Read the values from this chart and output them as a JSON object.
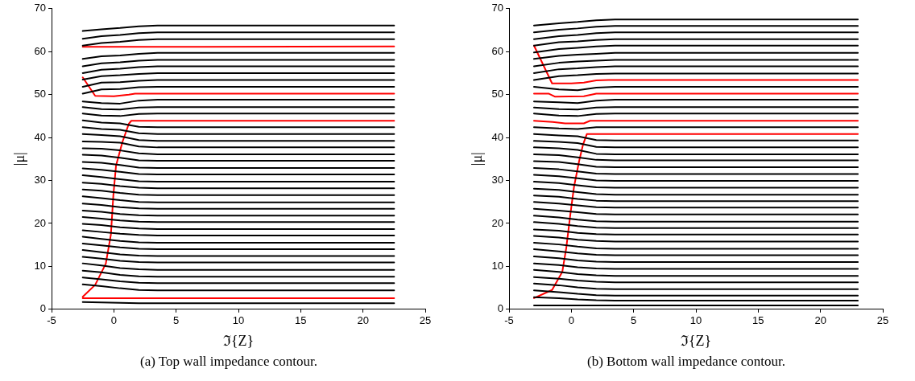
{
  "chart_data": [
    {
      "type": "line",
      "xlabel": "ℑ{Z}",
      "ylabel": "|μ|",
      "xlim": [
        -5,
        25
      ],
      "ylim": [
        0,
        70
      ],
      "xticks": [
        -5,
        0,
        5,
        10,
        15,
        20,
        25
      ],
      "yticks": [
        0,
        10,
        20,
        30,
        40,
        50,
        60,
        70
      ],
      "legend": false,
      "annotations": [
        "(a)  Top wall impedance contour."
      ],
      "x": [
        -2.5,
        -1,
        0.5,
        2,
        3.5,
        22.5
      ],
      "series": [
        {
          "color": "#000000",
          "values": [
            64.8,
            65.2,
            65.5,
            65.9,
            66.1,
            66.1
          ]
        },
        {
          "color": "#000000",
          "values": [
            63.0,
            63.6,
            63.9,
            64.3,
            64.5,
            64.5
          ]
        },
        {
          "color": "#000000",
          "values": [
            61.4,
            62.0,
            62.3,
            62.7,
            62.9,
            62.9
          ]
        },
        {
          "color": "#000000",
          "values": [
            58.3,
            58.9,
            59.1,
            59.5,
            59.7,
            59.7
          ]
        },
        {
          "color": "#000000",
          "values": [
            56.6,
            57.3,
            57.5,
            57.9,
            58.1,
            58.1
          ]
        },
        {
          "color": "#000000",
          "values": [
            55.0,
            55.8,
            56.0,
            56.4,
            56.6,
            56.6
          ]
        },
        {
          "color": "#000000",
          "values": [
            53.5,
            54.3,
            54.5,
            54.8,
            55.0,
            55.0
          ]
        },
        {
          "color": "#000000",
          "values": [
            51.8,
            52.8,
            52.9,
            53.2,
            53.4,
            53.4
          ]
        },
        {
          "color": "#000000",
          "values": [
            50.2,
            51.2,
            51.3,
            51.7,
            51.8,
            51.8
          ]
        },
        {
          "color": "#000000",
          "values": [
            48.4,
            48.0,
            47.9,
            48.6,
            48.8,
            48.8
          ]
        },
        {
          "color": "#000000",
          "values": [
            47.1,
            46.6,
            46.5,
            47.0,
            47.1,
            47.1
          ]
        },
        {
          "color": "#000000",
          "values": [
            45.6,
            45.1,
            45.0,
            45.5,
            45.6,
            45.6
          ]
        },
        {
          "color": "#000000",
          "values": [
            44.0,
            43.5,
            43.3,
            42.5,
            42.4,
            42.4
          ]
        },
        {
          "color": "#000000",
          "values": [
            42.4,
            42.0,
            41.8,
            41.0,
            40.8,
            40.8
          ]
        },
        {
          "color": "#000000",
          "values": [
            40.8,
            40.6,
            40.3,
            39.4,
            39.2,
            39.2
          ]
        },
        {
          "color": "#000000",
          "values": [
            39.1,
            39.0,
            38.8,
            37.9,
            37.7,
            37.7
          ]
        },
        {
          "color": "#000000",
          "values": [
            37.5,
            37.4,
            37.0,
            36.3,
            36.1,
            36.1
          ]
        },
        {
          "color": "#000000",
          "values": [
            36.0,
            35.8,
            35.3,
            34.7,
            34.6,
            34.6
          ]
        },
        {
          "color": "#000000",
          "values": [
            34.3,
            34.1,
            33.6,
            33.0,
            32.9,
            32.9
          ]
        },
        {
          "color": "#000000",
          "values": [
            32.8,
            32.5,
            32.0,
            31.5,
            31.4,
            31.4
          ]
        },
        {
          "color": "#000000",
          "values": [
            31.2,
            30.8,
            30.3,
            29.8,
            29.7,
            29.7
          ]
        },
        {
          "color": "#000000",
          "values": [
            29.5,
            29.2,
            28.7,
            28.3,
            28.2,
            28.2
          ]
        },
        {
          "color": "#000000",
          "values": [
            27.9,
            27.6,
            27.1,
            26.7,
            26.6,
            26.6
          ]
        },
        {
          "color": "#000000",
          "values": [
            26.3,
            25.9,
            25.4,
            25.0,
            24.9,
            24.9
          ]
        },
        {
          "color": "#000000",
          "values": [
            24.6,
            24.3,
            23.8,
            23.5,
            23.4,
            23.4
          ]
        },
        {
          "color": "#000000",
          "values": [
            23.0,
            22.7,
            22.2,
            21.9,
            21.8,
            21.8
          ]
        },
        {
          "color": "#000000",
          "values": [
            21.5,
            21.1,
            20.7,
            20.4,
            20.3,
            20.3
          ]
        },
        {
          "color": "#000000",
          "values": [
            19.9,
            19.6,
            19.1,
            18.8,
            18.7,
            18.7
          ]
        },
        {
          "color": "#000000",
          "values": [
            18.4,
            18.0,
            17.6,
            17.3,
            17.2,
            17.2
          ]
        },
        {
          "color": "#000000",
          "values": [
            16.9,
            16.4,
            15.9,
            15.6,
            15.5,
            15.5
          ]
        },
        {
          "color": "#000000",
          "values": [
            15.3,
            14.9,
            14.4,
            14.1,
            14.0,
            14.0
          ]
        },
        {
          "color": "#000000",
          "values": [
            13.8,
            13.3,
            12.8,
            12.5,
            12.4,
            12.4
          ]
        },
        {
          "color": "#000000",
          "values": [
            12.2,
            11.8,
            11.3,
            11.0,
            10.9,
            10.9
          ]
        },
        {
          "color": "#000000",
          "values": [
            10.7,
            10.2,
            9.6,
            9.3,
            9.2,
            9.2
          ]
        },
        {
          "color": "#000000",
          "values": [
            9.0,
            8.6,
            8.0,
            7.7,
            7.6,
            7.6
          ]
        },
        {
          "color": "#000000",
          "values": [
            7.4,
            7.0,
            6.5,
            6.2,
            6.1,
            6.1
          ]
        },
        {
          "color": "#000000",
          "values": [
            5.8,
            5.4,
            4.9,
            4.5,
            4.4,
            4.4
          ]
        },
        {
          "color": "#000000",
          "values": [
            1.7,
            1.6,
            1.5,
            1.4,
            1.4,
            1.4
          ]
        },
        {
          "color": "#ff0000",
          "x": [
            -2.5,
            22.5
          ],
          "values": [
            61.1,
            61.2
          ]
        },
        {
          "color": "#ff0000",
          "x": [
            -2.5,
            -1.5,
            0,
            1.2,
            1.7,
            22.5
          ],
          "values": [
            54.0,
            49.7,
            49.6,
            50.0,
            50.2,
            50.2
          ]
        },
        {
          "color": "#ff0000",
          "x": [
            -2.5,
            22.5
          ],
          "values": [
            2.6,
            2.6
          ]
        },
        {
          "color": "#ff0000",
          "x": [
            -2.5,
            -1.5,
            -0.65,
            -0.24,
            -0.04,
            0.17,
            0.68,
            1.2,
            1.4,
            22.5
          ],
          "values": [
            2.9,
            5.7,
            10.6,
            17.4,
            26.6,
            33.4,
            38.9,
            43.2,
            43.9,
            43.9
          ]
        }
      ]
    },
    {
      "type": "line",
      "xlabel": "ℑ{Z}",
      "ylabel": "|μ|",
      "xlim": [
        -5,
        25
      ],
      "ylim": [
        0,
        70
      ],
      "xticks": [
        -5,
        0,
        5,
        10,
        15,
        20,
        25
      ],
      "yticks": [
        0,
        10,
        20,
        30,
        40,
        50,
        60,
        70
      ],
      "legend": false,
      "annotations": [
        "(b)  Bottom wall impedance contour."
      ],
      "x": [
        -3,
        -1,
        0.5,
        2,
        3.5,
        23
      ],
      "series": [
        {
          "color": "#000000",
          "values": [
            66.1,
            66.6,
            66.9,
            67.3,
            67.5,
            67.5
          ]
        },
        {
          "color": "#000000",
          "values": [
            64.5,
            65.1,
            65.4,
            65.8,
            66.0,
            66.0
          ]
        },
        {
          "color": "#000000",
          "values": [
            62.9,
            63.6,
            63.9,
            64.3,
            64.5,
            64.5
          ]
        },
        {
          "color": "#000000",
          "values": [
            61.4,
            62.2,
            62.4,
            62.7,
            62.9,
            62.9
          ]
        },
        {
          "color": "#000000",
          "values": [
            59.8,
            60.6,
            60.9,
            61.2,
            61.4,
            61.4
          ]
        },
        {
          "color": "#000000",
          "values": [
            58.3,
            59.0,
            59.3,
            59.5,
            59.7,
            59.7
          ]
        },
        {
          "color": "#000000",
          "values": [
            56.6,
            57.4,
            57.7,
            57.9,
            58.1,
            58.1
          ]
        },
        {
          "color": "#000000",
          "values": [
            55.0,
            55.9,
            56.1,
            56.4,
            56.6,
            56.6
          ]
        },
        {
          "color": "#000000",
          "values": [
            53.4,
            54.3,
            54.5,
            54.8,
            54.9,
            54.9
          ]
        },
        {
          "color": "#000000",
          "values": [
            51.8,
            51.2,
            51.0,
            51.6,
            51.8,
            51.8
          ]
        },
        {
          "color": "#000000",
          "values": [
            48.4,
            48.2,
            48.0,
            48.6,
            48.8,
            48.8
          ]
        },
        {
          "color": "#000000",
          "values": [
            47.0,
            46.6,
            46.5,
            47.0,
            47.1,
            47.1
          ]
        },
        {
          "color": "#000000",
          "values": [
            45.6,
            45.1,
            45.0,
            45.5,
            45.6,
            45.6
          ]
        },
        {
          "color": "#000000",
          "values": [
            42.4,
            42.1,
            42.0,
            42.4,
            42.4,
            42.4
          ]
        },
        {
          "color": "#000000",
          "values": [
            40.8,
            40.5,
            40.3,
            39.4,
            39.3,
            39.3
          ]
        },
        {
          "color": "#000000",
          "values": [
            39.2,
            39.0,
            38.7,
            37.8,
            37.7,
            37.7
          ]
        },
        {
          "color": "#000000",
          "values": [
            37.7,
            37.5,
            37.1,
            36.2,
            36.1,
            36.1
          ]
        },
        {
          "color": "#000000",
          "values": [
            36.1,
            35.9,
            35.4,
            34.8,
            34.7,
            34.7
          ]
        },
        {
          "color": "#000000",
          "values": [
            34.5,
            34.3,
            33.8,
            33.2,
            33.1,
            33.1
          ]
        },
        {
          "color": "#000000",
          "values": [
            32.9,
            32.6,
            32.1,
            31.6,
            31.5,
            31.5
          ]
        },
        {
          "color": "#000000",
          "values": [
            31.3,
            31.0,
            30.5,
            30.0,
            29.9,
            29.9
          ]
        },
        {
          "color": "#000000",
          "values": [
            29.7,
            29.4,
            28.9,
            28.4,
            28.3,
            28.3
          ]
        },
        {
          "color": "#000000",
          "values": [
            28.1,
            27.8,
            27.3,
            26.8,
            26.7,
            26.7
          ]
        },
        {
          "color": "#000000",
          "values": [
            26.5,
            26.2,
            25.7,
            25.3,
            25.2,
            25.2
          ]
        },
        {
          "color": "#000000",
          "values": [
            25.0,
            24.6,
            24.2,
            23.8,
            23.7,
            23.7
          ]
        },
        {
          "color": "#000000",
          "values": [
            23.4,
            23.0,
            22.6,
            22.2,
            22.1,
            22.1
          ]
        },
        {
          "color": "#000000",
          "values": [
            21.8,
            21.4,
            20.9,
            20.5,
            20.4,
            20.4
          ]
        },
        {
          "color": "#000000",
          "values": [
            20.3,
            19.9,
            19.4,
            19.0,
            18.9,
            18.9
          ]
        },
        {
          "color": "#000000",
          "values": [
            18.6,
            18.3,
            17.8,
            17.5,
            17.4,
            17.4
          ]
        },
        {
          "color": "#000000",
          "values": [
            17.1,
            16.7,
            16.2,
            15.9,
            15.8,
            15.8
          ]
        },
        {
          "color": "#000000",
          "values": [
            15.5,
            15.1,
            14.6,
            14.2,
            14.1,
            14.1
          ]
        },
        {
          "color": "#000000",
          "values": [
            14.0,
            13.5,
            13.0,
            12.7,
            12.6,
            12.6
          ]
        },
        {
          "color": "#000000",
          "values": [
            12.3,
            11.9,
            11.4,
            11.1,
            11.0,
            11.0
          ]
        },
        {
          "color": "#000000",
          "values": [
            10.7,
            10.3,
            9.8,
            9.5,
            9.4,
            9.4
          ]
        },
        {
          "color": "#000000",
          "values": [
            9.2,
            8.7,
            8.2,
            7.9,
            7.8,
            7.8
          ]
        },
        {
          "color": "#000000",
          "values": [
            7.5,
            7.1,
            6.7,
            6.4,
            6.3,
            6.3
          ]
        },
        {
          "color": "#000000",
          "values": [
            6.0,
            5.6,
            5.1,
            4.8,
            4.7,
            4.7
          ]
        },
        {
          "color": "#000000",
          "values": [
            4.4,
            4.0,
            3.6,
            3.3,
            3.2,
            3.2
          ]
        },
        {
          "color": "#000000",
          "values": [
            2.8,
            2.6,
            2.3,
            2.1,
            2.0,
            2.0
          ]
        },
        {
          "color": "#000000",
          "values": [
            0.9,
            0.9,
            0.9,
            0.9,
            0.9,
            0.9
          ]
        },
        {
          "color": "#ff0000",
          "x": [
            -3,
            -1.55,
            0,
            1,
            2,
            3,
            23
          ],
          "values": [
            61.4,
            52.6,
            52.6,
            52.8,
            53.3,
            53.4,
            53.4
          ]
        },
        {
          "color": "#ff0000",
          "x": [
            -3,
            -1.8,
            -1.3,
            1,
            2,
            23
          ],
          "values": [
            50.2,
            50.2,
            49.5,
            49.6,
            50.2,
            50.2
          ]
        },
        {
          "color": "#ff0000",
          "x": [
            -3,
            -1.5,
            -0.5,
            1,
            1.5,
            23
          ],
          "values": [
            43.9,
            43.6,
            43.3,
            43.3,
            43.9,
            43.9
          ]
        },
        {
          "color": "#ff0000",
          "x": [
            -3,
            -1.55,
            -0.73,
            -0.41,
            -0.1,
            0.21,
            0.62,
            0.93,
            1.24,
            23
          ],
          "values": [
            2.6,
            4.5,
            8.7,
            14.3,
            21.7,
            28.5,
            34.5,
            38.3,
            40.8,
            40.8
          ]
        }
      ]
    }
  ]
}
